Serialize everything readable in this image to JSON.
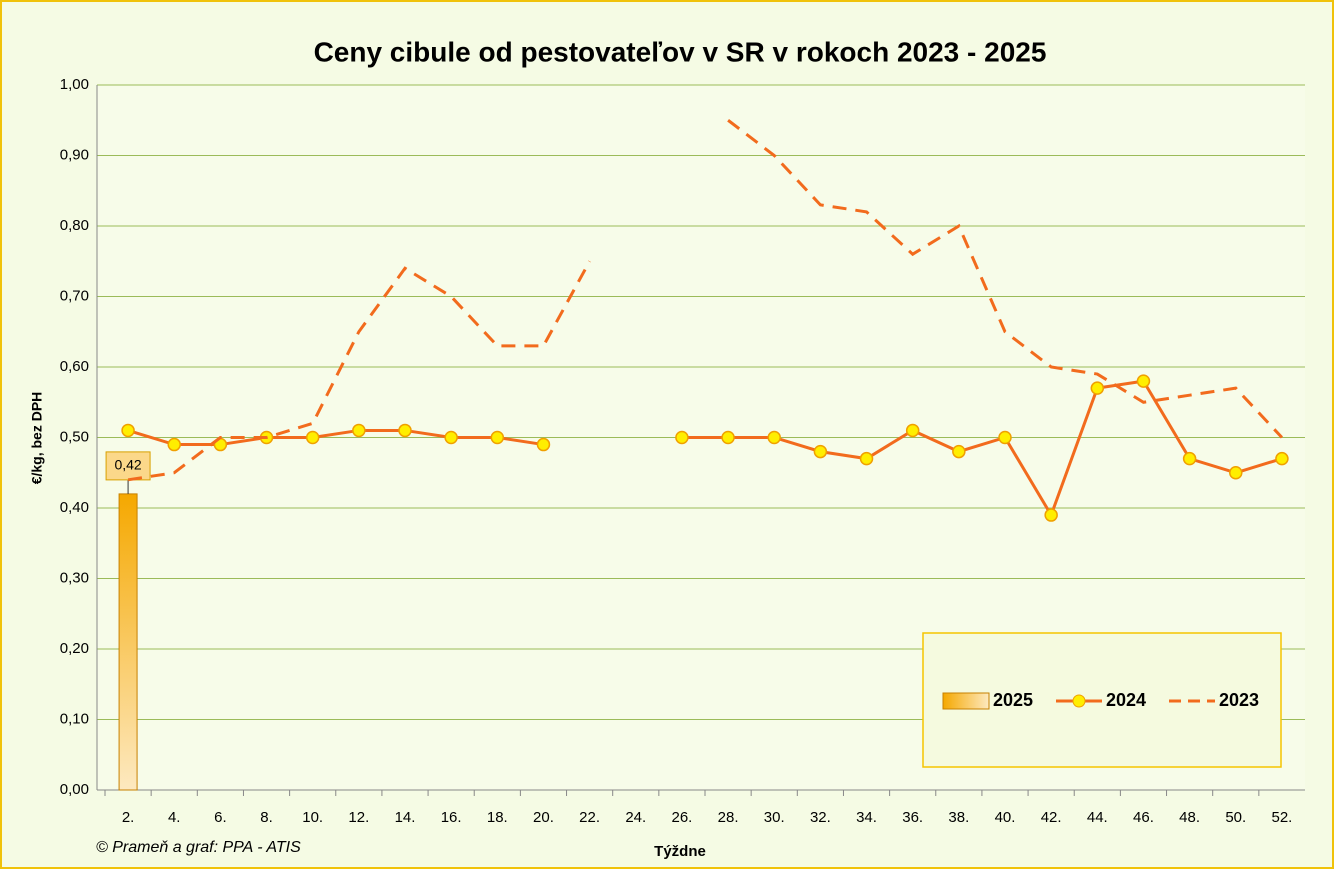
{
  "chart_data": {
    "type": "line",
    "title": "Ceny cibule od pestovateľov v SR v rokoch 2023 - 2025",
    "y_label": "€/kg, bez DPH",
    "x_label": "Týždne",
    "source": "© Prameň a graf: PPA - ATIS",
    "categories": [
      "2.",
      "4.",
      "6.",
      "8.",
      "10.",
      "12.",
      "14.",
      "16.",
      "18.",
      "20.",
      "22.",
      "24.",
      "26.",
      "28.",
      "30.",
      "32.",
      "34.",
      "36.",
      "38.",
      "40.",
      "42.",
      "44.",
      "46.",
      "48.",
      "50.",
      "52."
    ],
    "series": [
      {
        "name": "2025",
        "type": "bar",
        "color": "#f5a800",
        "values": [
          0.42,
          null,
          null,
          null,
          null,
          null,
          null,
          null,
          null,
          null,
          null,
          null,
          null,
          null,
          null,
          null,
          null,
          null,
          null,
          null,
          null,
          null,
          null,
          null,
          null,
          null
        ],
        "value_labels": [
          "0,42",
          null,
          null,
          null,
          null,
          null,
          null,
          null,
          null,
          null,
          null,
          null,
          null,
          null,
          null,
          null,
          null,
          null,
          null,
          null,
          null,
          null,
          null,
          null,
          null,
          null
        ]
      },
      {
        "name": "2024",
        "type": "line",
        "color": "#f26b1d",
        "marker": true,
        "values": [
          0.51,
          0.49,
          0.49,
          0.5,
          0.5,
          0.51,
          0.51,
          0.5,
          0.5,
          0.49,
          null,
          null,
          0.5,
          0.5,
          0.5,
          0.48,
          0.47,
          0.51,
          0.48,
          0.5,
          0.39,
          0.57,
          0.58,
          0.47,
          0.45,
          0.47
        ]
      },
      {
        "name": "2023",
        "type": "line",
        "color": "#f26b1d",
        "dashed": true,
        "values": [
          0.44,
          0.45,
          0.5,
          0.5,
          0.52,
          0.65,
          0.74,
          0.7,
          0.63,
          0.63,
          0.75,
          null,
          null,
          0.95,
          0.9,
          0.83,
          0.82,
          0.76,
          0.8,
          0.65,
          0.6,
          0.59,
          0.55,
          0.56,
          0.57,
          0.5
        ]
      }
    ],
    "ylim": [
      0,
      1
    ],
    "yticks": [
      {
        "value": 0,
        "label": "0,00"
      },
      {
        "value": 0.1,
        "label": "0,10"
      },
      {
        "value": 0.2,
        "label": "0,20"
      },
      {
        "value": 0.3,
        "label": "0,30"
      },
      {
        "value": 0.4,
        "label": "0,40"
      },
      {
        "value": 0.5,
        "label": "0,50"
      },
      {
        "value": 0.6,
        "label": "0,60"
      },
      {
        "value": 0.7,
        "label": "0,70"
      },
      {
        "value": 0.8,
        "label": "0,80"
      },
      {
        "value": 0.9,
        "label": "0,90"
      },
      {
        "value": 1,
        "label": "1,00"
      }
    ],
    "grid": true,
    "legend": "bottom-right"
  }
}
